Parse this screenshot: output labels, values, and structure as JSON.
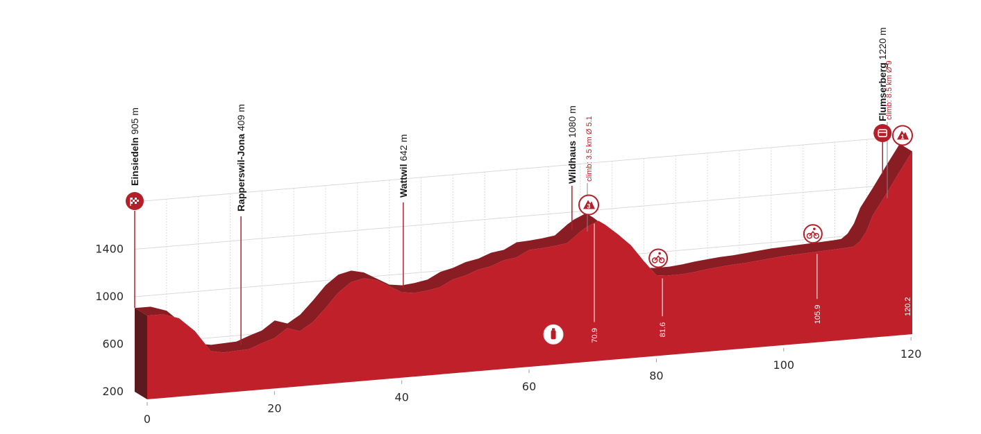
{
  "colors": {
    "profile_front": "#c0202a",
    "profile_top": "#8a1d24",
    "profile_side": "#5a1a1e",
    "marker": "#b3202a",
    "grid": "#d9d9d9",
    "axis_text": "#2a2a2a"
  },
  "chart_data": {
    "type": "area",
    "title": "",
    "xlabel": "",
    "ylabel": "",
    "xlim": [
      0,
      120.2
    ],
    "ylim": [
      200,
      1800
    ],
    "grid": true,
    "x_ticks": [
      "0",
      "20",
      "40",
      "60",
      "80",
      "100",
      "120"
    ],
    "y_ticks": [
      "200",
      "600",
      "1000",
      "1400"
    ],
    "series": [
      {
        "x": [
          0,
          2.5,
          5,
          7.5,
          10,
          12,
          14,
          16,
          18,
          20,
          22,
          24,
          26,
          28,
          30,
          32,
          34,
          36,
          38,
          40,
          42,
          44,
          46,
          48,
          50,
          52,
          54,
          56,
          58,
          60,
          62,
          64,
          66,
          68,
          69,
          70.9,
          72,
          74,
          76,
          78,
          80,
          81.6,
          84,
          86,
          88,
          90,
          92,
          94,
          96,
          98,
          100,
          102,
          104,
          105.9,
          108,
          110,
          111,
          112,
          113,
          114,
          116,
          118,
          120.2
        ],
        "values": [
          905,
          905,
          860,
          740,
          560,
          540,
          545,
          550,
          590,
          625,
          700,
          665,
          730,
          840,
          960,
          1040,
          1065,
          1040,
          980,
          920,
          905,
          915,
          935,
          990,
          1015,
          1055,
          1075,
          1115,
          1130,
          1185,
          1190,
          1200,
          1215,
          1300,
          1335,
          1380,
          1340,
          1250,
          1150,
          1010,
          880,
          870,
          870,
          880,
          895,
          905,
          915,
          920,
          930,
          940,
          950,
          955,
          960,
          965,
          970,
          975,
          980,
          1020,
          1100,
          1230,
          1390,
          1560,
          1740
        ]
      }
    ],
    "annotations": {
      "places": [
        {
          "km": 0,
          "name": "Einsiedeln",
          "alt": "905 m",
          "climb": "",
          "marker": "finish-flag-icon"
        },
        {
          "km": 15.5,
          "name": "Rapperswil-Jona",
          "alt": "409 m",
          "climb": "",
          "marker": ""
        },
        {
          "km": 41,
          "name": "Wattwil",
          "alt": "642 m",
          "climb": "",
          "marker": ""
        },
        {
          "km": 67.5,
          "name": "Wildhaus",
          "alt": "1080 m",
          "climb": "climb: 3.5 km Ø 5.1",
          "marker": ""
        },
        {
          "km": 117.5,
          "name": "Flumserberg",
          "alt": "1220 m",
          "climb": "climb: 8.5 km Ø 9",
          "marker": "finish-icon"
        }
      ],
      "km_labels": [
        {
          "km": 70.9,
          "text": "70.9"
        },
        {
          "km": 81.6,
          "text": "81.6"
        },
        {
          "km": 105.9,
          "text": "105.9"
        },
        {
          "km": 120.2,
          "text": "120.2"
        }
      ],
      "kom_markers": [
        {
          "km": 70.9,
          "category": "3"
        },
        {
          "km": 120.2,
          "category": "1"
        }
      ],
      "sprint_markers": [
        {
          "km": 81.6
        },
        {
          "km": 105.9
        }
      ],
      "feed_zone": {
        "km": 66
      }
    }
  }
}
